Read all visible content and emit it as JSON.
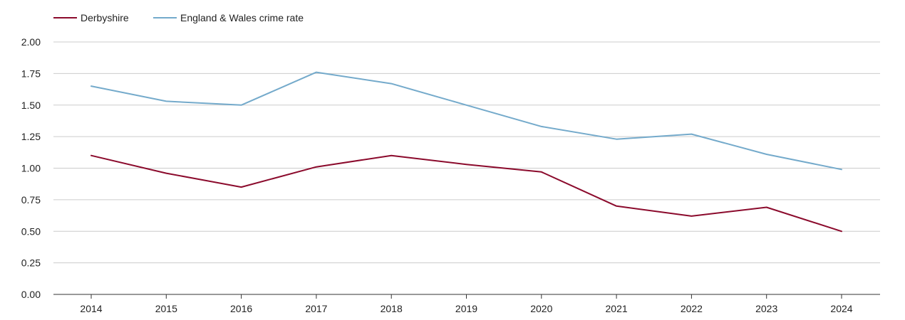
{
  "chart_data": {
    "type": "line",
    "title": "",
    "xlabel": "",
    "ylabel": "",
    "categories": [
      "2014",
      "2015",
      "2016",
      "2017",
      "2018",
      "2019",
      "2020",
      "2021",
      "2022",
      "2023",
      "2024"
    ],
    "ylim": [
      0,
      2
    ],
    "yticks": [
      "0.00",
      "0.25",
      "0.50",
      "0.75",
      "1.00",
      "1.25",
      "1.50",
      "1.75",
      "2.00"
    ],
    "grid": true,
    "legend_position": "top-left",
    "series": [
      {
        "name": "Derbyshire",
        "color": "#8b0a2c",
        "values": [
          1.1,
          0.96,
          0.85,
          1.01,
          1.1,
          1.03,
          0.97,
          0.7,
          0.62,
          0.69,
          0.5
        ]
      },
      {
        "name": "England & Wales crime rate",
        "color": "#74aacb",
        "values": [
          1.65,
          1.53,
          1.5,
          1.76,
          1.67,
          1.5,
          1.33,
          1.23,
          1.27,
          1.11,
          0.99
        ]
      }
    ]
  }
}
